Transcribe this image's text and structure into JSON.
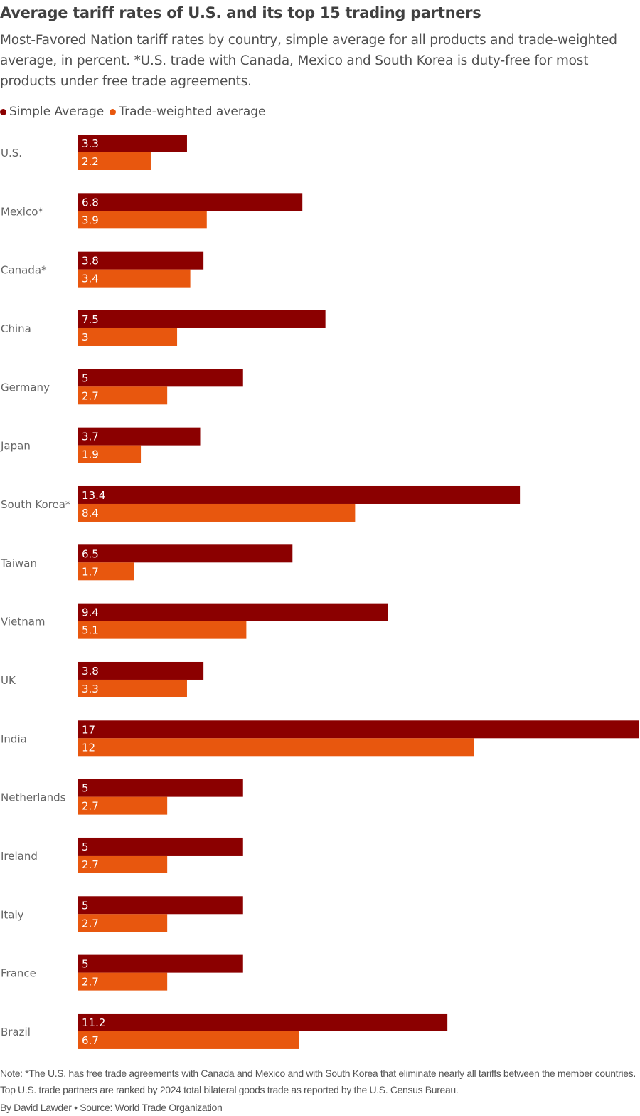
{
  "title": "Average tariff rates of U.S. and its top 15 trading partners",
  "subtitle": "Most-Favored Nation tariff rates by country, simple average for all products and trade-weighted average, in percent. *U.S. trade with Canada, Mexico and South Korea is duty-free for most products under free trade agreements.",
  "note": "Note: *The U.S. has free trade agreements with Canada and Mexico and with South Korea that eliminate nearly all tariffs between the member countries. Top U.S. trade partners are ranked by 2024 total bilateral goods trade as reported by the U.S. Census Bureau.",
  "credit": "By David Lawder • Source: World Trade Organization",
  "chart_data": {
    "type": "bar",
    "orientation": "horizontal",
    "title": "Average tariff rates of U.S. and its top 15 trading partners",
    "xlabel": "",
    "ylabel": "",
    "xlim": [
      0,
      17
    ],
    "grid": false,
    "legend_position": "top-left",
    "categories": [
      "U.S.",
      "Mexico*",
      "Canada*",
      "China",
      "Germany",
      "Japan",
      "South Korea*",
      "Taiwan",
      "Vietnam",
      "UK",
      "India",
      "Netherlands",
      "Ireland",
      "Italy",
      "France",
      "Brazil"
    ],
    "series": [
      {
        "name": "Simple Average",
        "color": "#8b0000",
        "values": [
          3.3,
          6.8,
          3.8,
          7.5,
          5,
          3.7,
          13.4,
          6.5,
          9.4,
          3.8,
          17,
          5,
          5,
          5,
          5,
          11.2
        ]
      },
      {
        "name": "Trade-weighted average",
        "color": "#e8570e",
        "values": [
          2.2,
          3.9,
          3.4,
          3,
          2.7,
          1.9,
          8.4,
          1.7,
          5.1,
          3.3,
          12,
          2.7,
          2.7,
          2.7,
          2.7,
          6.7
        ]
      }
    ]
  }
}
